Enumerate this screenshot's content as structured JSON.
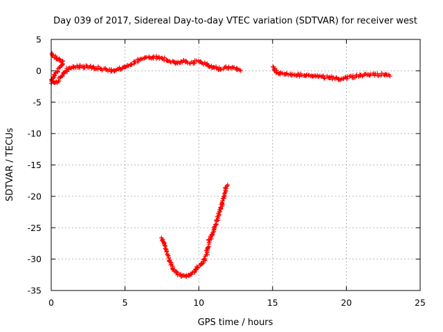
{
  "chart_data": {
    "type": "scatter",
    "title": "Day 039 of 2017, Sidereal Day-to-day VTEC variation (SDTVAR) for receiver west",
    "xlabel": "GPS time / hours",
    "ylabel": "SDTVAR / TECUs",
    "xlim": [
      0,
      25
    ],
    "ylim": [
      -35,
      5
    ],
    "xticks": [
      0,
      5,
      10,
      15,
      20,
      25
    ],
    "yticks": [
      5,
      0,
      -5,
      -10,
      -15,
      -20,
      -25,
      -30,
      -35
    ],
    "grid": true,
    "marker": "+",
    "color": "#ff0000",
    "series": [
      {
        "name": "SDTVAR segment 1",
        "x": [
          0.0,
          0.2,
          0.4,
          0.6,
          0.8,
          0.0,
          0.2,
          0.4,
          0.6,
          0.8,
          1.0,
          1.2,
          1.5,
          2.0,
          2.5,
          3.0,
          3.5,
          4.0,
          4.5,
          5.0,
          5.5,
          6.0,
          6.5,
          7.0,
          7.5,
          8.0,
          8.5,
          9.0,
          9.5,
          10.0,
          10.5,
          11.0,
          11.5,
          12.0,
          12.5,
          12.8
        ],
        "y": [
          2.6,
          2.3,
          2.0,
          1.7,
          1.4,
          -1.8,
          -2.0,
          -1.7,
          -1.2,
          -0.6,
          0.0,
          0.4,
          0.6,
          0.7,
          0.6,
          0.5,
          0.3,
          0.1,
          0.2,
          0.6,
          1.2,
          1.8,
          2.1,
          2.2,
          2.0,
          1.6,
          1.2,
          1.6,
          1.3,
          1.5,
          1.0,
          0.5,
          0.3,
          0.6,
          0.4,
          0.2
        ]
      },
      {
        "name": "SDTVAR segment 2",
        "x": [
          7.5,
          7.8,
          8.0,
          8.2,
          8.5,
          8.8,
          9.0,
          9.3,
          9.6,
          9.9,
          10.2,
          10.5,
          10.7,
          10.9,
          11.1,
          11.3,
          11.5,
          11.7,
          11.9
        ],
        "y": [
          -26.8,
          -28.5,
          -30.0,
          -31.3,
          -32.1,
          -32.6,
          -32.8,
          -32.6,
          -32.0,
          -31.4,
          -30.8,
          -29.5,
          -27.0,
          -26.2,
          -24.8,
          -23.3,
          -21.8,
          -20.2,
          -18.2
        ]
      },
      {
        "name": "SDTVAR segment 3",
        "x": [
          15.0,
          15.3,
          15.6,
          16.0,
          16.5,
          17.0,
          17.5,
          18.0,
          18.5,
          19.0,
          19.5,
          20.0,
          20.5,
          21.0,
          21.5,
          22.0,
          22.5,
          22.9
        ],
        "y": [
          0.8,
          -0.3,
          -0.5,
          -0.5,
          -0.6,
          -0.7,
          -0.8,
          -0.9,
          -1.0,
          -1.1,
          -1.3,
          -1.1,
          -0.9,
          -0.7,
          -0.6,
          -0.6,
          -0.6,
          -0.7
        ]
      }
    ]
  }
}
